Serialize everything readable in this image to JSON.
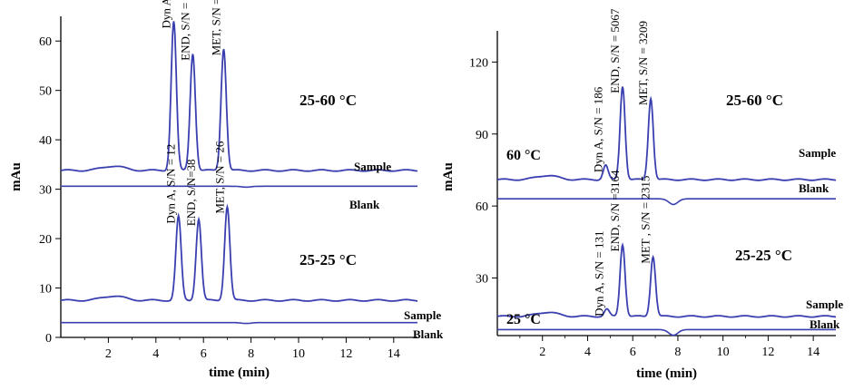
{
  "colors": {
    "trace": "#3a3fb0",
    "axis": "#000000"
  },
  "chart_data": [
    {
      "type": "line",
      "xlabel": "time (min)",
      "ylabel": "mAu",
      "xlim": [
        0,
        15
      ],
      "ylim": [
        0,
        65
      ],
      "x_ticks": [
        2,
        4,
        6,
        8,
        10,
        12,
        14
      ],
      "y_ticks": [
        0,
        10,
        20,
        30,
        40,
        50,
        60
      ],
      "upper": {
        "condition": "25-60 °C",
        "sample_label": "Sample",
        "blank_label": "Blank",
        "sample_baseline": 33.8,
        "blank_baseline": 30.6,
        "peaks": [
          {
            "label": "Dyn A, S/N = 30",
            "time": 4.75,
            "apex": 64
          },
          {
            "label": "END, S/N = 52",
            "time": 5.55,
            "apex": 57.5
          },
          {
            "label": "MET, S/N = 35",
            "time": 6.85,
            "apex": 58.5
          }
        ]
      },
      "lower": {
        "condition": "25-25 °C",
        "sample_label": "Sample",
        "blank_label": "Blank",
        "sample_baseline": 7.5,
        "blank_baseline": 3.0,
        "peaks": [
          {
            "label": "Dyn A, S/N = 12",
            "time": 4.95,
            "apex": 24.5
          },
          {
            "label": "END, S/N=38",
            "time": 5.8,
            "apex": 24
          },
          {
            "label": "MET, S/N = 26",
            "time": 7.0,
            "apex": 26.5
          }
        ]
      }
    },
    {
      "type": "line",
      "xlabel": "time (min)",
      "ylabel": "mAu",
      "xlim": [
        0,
        15
      ],
      "ylim": [
        6,
        133
      ],
      "x_ticks": [
        2,
        4,
        6,
        8,
        10,
        12,
        14
      ],
      "y_ticks": [
        30,
        60,
        90,
        120
      ],
      "upper": {
        "condition": "25-60 °C",
        "temp_label": "60 °C",
        "sample_label": "Sample",
        "blank_label": "Blank",
        "sample_baseline": 71,
        "blank_baseline": 63,
        "peaks": [
          {
            "label": "Dyn A, S/N = 186",
            "time": 4.8,
            "apex": 77
          },
          {
            "label": "END, S/N = 5067",
            "time": 5.55,
            "apex": 110
          },
          {
            "label": "MET, S/N = 3209",
            "time": 6.8,
            "apex": 105
          }
        ]
      },
      "lower": {
        "condition": "25-25 °C",
        "temp_label": "25 °C",
        "sample_label": "Sample",
        "blank_label": "Blank",
        "sample_baseline": 14,
        "blank_baseline": 8.5,
        "peaks": [
          {
            "label": "Dyn A, S/N = 131",
            "time": 4.85,
            "apex": 17
          },
          {
            "label": "END, S/N =3164",
            "time": 5.55,
            "apex": 44
          },
          {
            "label": "MET , S/N = 2315",
            "time": 6.9,
            "apex": 39
          }
        ]
      }
    }
  ]
}
